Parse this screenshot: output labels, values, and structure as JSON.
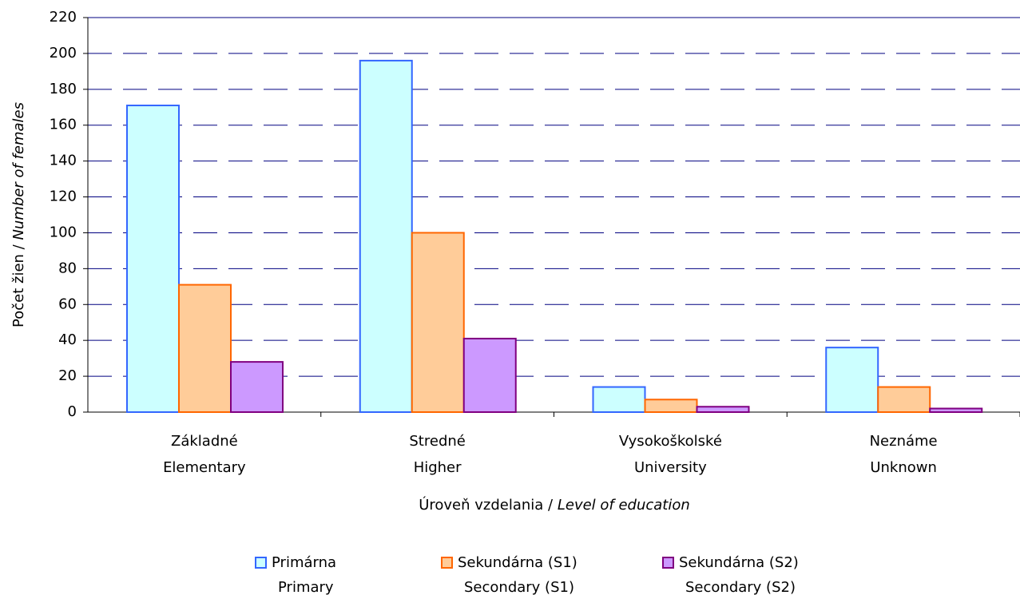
{
  "chart_data": {
    "type": "bar",
    "y_label": [
      "Počet žien / ",
      "Number of females"
    ],
    "x_label": [
      "Úroveň vzdelania / ",
      "Level of education"
    ],
    "categories": [
      [
        "Základné",
        "Elementary"
      ],
      [
        "Stredné",
        "Higher"
      ],
      [
        "Vysokoškolské",
        "University"
      ],
      [
        "Neznáme",
        "Unknown"
      ]
    ],
    "series": [
      {
        "name": [
          "Primárna",
          "Primary"
        ],
        "color": "#ccffff",
        "edge": "#3366ff",
        "values": [
          171,
          196,
          14,
          36
        ]
      },
      {
        "name": [
          "Sekundárna (S1)",
          "Secondary (S1)"
        ],
        "color": "#ffcc99",
        "edge": "#ff6600",
        "values": [
          71,
          100,
          7,
          14
        ]
      },
      {
        "name": [
          "Sekundárna (S2)",
          "Secondary (S2)"
        ],
        "color": "#cc99ff",
        "edge": "#800080",
        "values": [
          28,
          41,
          3,
          2
        ]
      }
    ],
    "ylim": [
      0,
      220
    ],
    "yticks": [
      0,
      20,
      40,
      60,
      80,
      100,
      120,
      140,
      160,
      180,
      200,
      220
    ],
    "grid": true
  }
}
